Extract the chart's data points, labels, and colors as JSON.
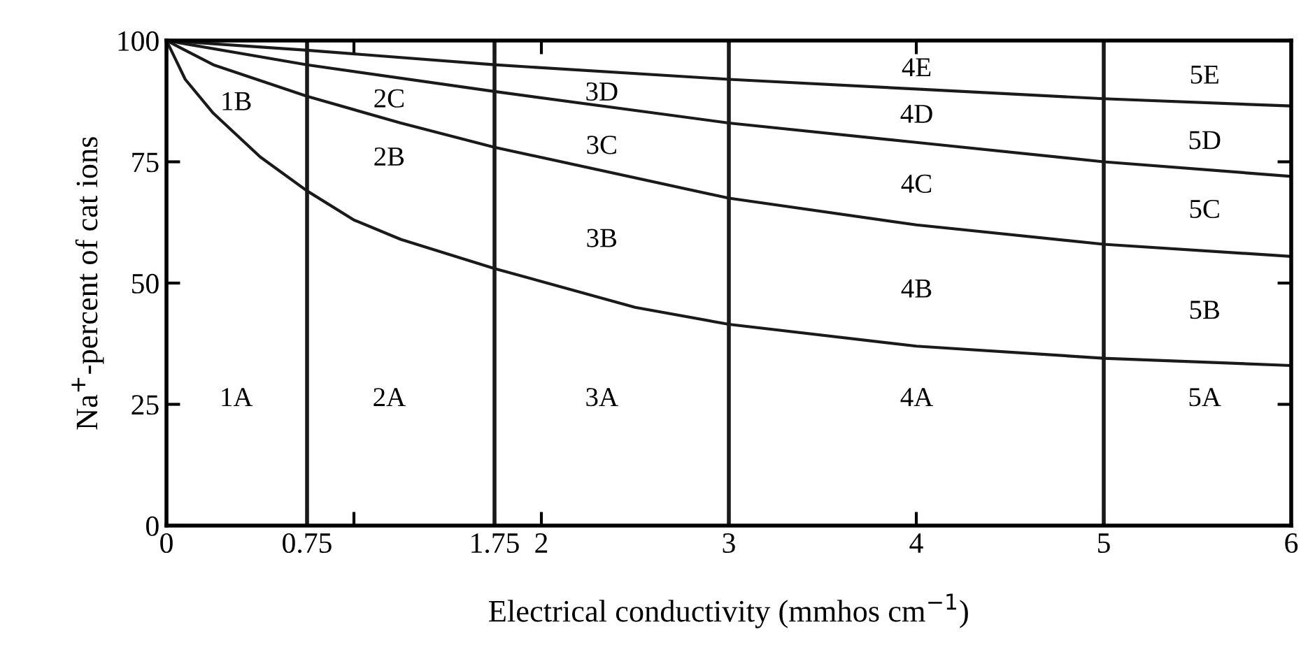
{
  "chart_data": {
    "type": "line",
    "xlabel": "Electrical conductivity (mmhos cm$^{−1}$)",
    "ylabel": "Na$^{+}$-percent of cat ions",
    "xlim": [
      0,
      6
    ],
    "ylim": [
      0,
      100
    ],
    "xticks": [
      0,
      0.75,
      {
        "value": 1,
        "label": null
      },
      1.75,
      2,
      3,
      4,
      5,
      6
    ],
    "yticks": [
      0,
      25,
      50,
      75,
      100
    ],
    "grid": false,
    "marker": "none",
    "line_style": "solid",
    "series": [
      {
        "color": "#1a1a1a",
        "x": [
          0,
          0.1,
          0.25,
          0.5,
          0.75,
          1.0,
          1.25,
          1.75,
          2.5,
          3,
          4,
          5,
          6
        ],
        "values": [
          100,
          92,
          85,
          76,
          69,
          63,
          59,
          53,
          45,
          41.5,
          37,
          34.5,
          33
        ]
      },
      {
        "color": "#1a1a1a",
        "x": [
          0,
          0.25,
          0.75,
          1.25,
          1.75,
          3,
          4,
          5,
          6
        ],
        "values": [
          100,
          95,
          88.5,
          83,
          78,
          67.5,
          62,
          58,
          55.5
        ]
      },
      {
        "color": "#1a1a1a",
        "x": [
          0,
          0.75,
          1.75,
          3,
          4,
          5,
          6
        ],
        "values": [
          100,
          95,
          89.5,
          83,
          79,
          75,
          72
        ]
      },
      {
        "color": "#1a1a1a",
        "x": [
          0,
          0.75,
          1.75,
          3,
          4,
          5,
          6
        ],
        "values": [
          100,
          98,
          95,
          92,
          90,
          88,
          86.5
        ]
      }
    ],
    "ref_lines": [
      {
        "axis": "x",
        "value": 0.75,
        "color": "#1a1a1a"
      },
      {
        "axis": "x",
        "value": 1.75,
        "color": "#1a1a1a"
      },
      {
        "axis": "x",
        "value": 3,
        "color": "#1a1a1a"
      },
      {
        "axis": "x",
        "value": 5,
        "color": "#1a1a1a"
      }
    ],
    "annotations": [
      "1A",
      "1B",
      "2A",
      "2B",
      "2C",
      "3A",
      "3B",
      "3C",
      "3D",
      "4A",
      "4B",
      "4C",
      "4D",
      "4E",
      "5A",
      "5B",
      "5C",
      "5D",
      "5E"
    ]
  }
}
